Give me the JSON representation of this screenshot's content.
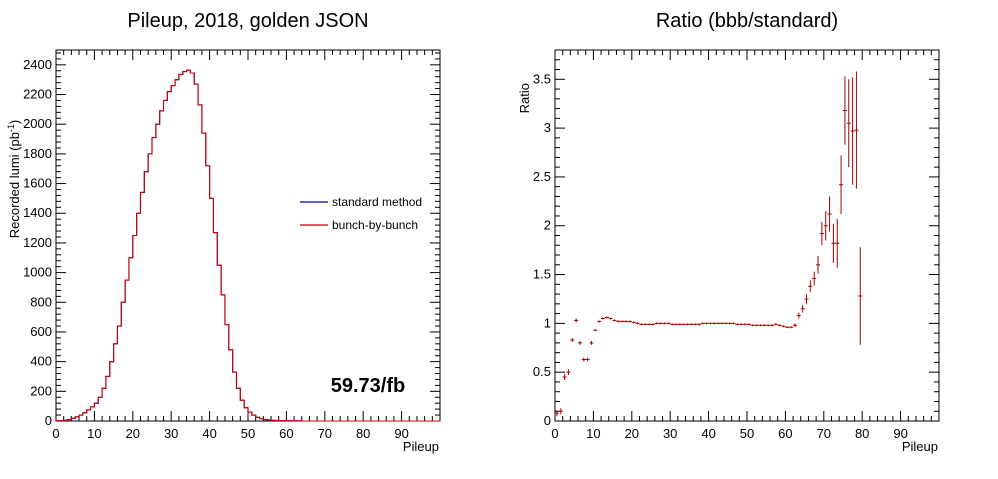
{
  "chart_data": [
    {
      "type": "line",
      "title": "Pileup, 2018, golden JSON",
      "xlabel": "Pileup",
      "ylabel": "Recorded lumi (pb",
      "ylabel_sup": "-1",
      "ylabel_close": ")",
      "xlim": [
        0,
        100
      ],
      "ylim": [
        0,
        2500
      ],
      "xticks": [
        0,
        10,
        20,
        30,
        40,
        50,
        60,
        70,
        80,
        90
      ],
      "yticks": [
        0,
        200,
        400,
        600,
        800,
        1000,
        1200,
        1400,
        1600,
        1800,
        2000,
        2200,
        2400
      ],
      "annotation": "59.73/fb",
      "legend_position": "right",
      "series": [
        {
          "name": "standard method",
          "color": "#000099",
          "values": [
            2,
            3,
            5,
            10,
            18,
            28,
            40,
            55,
            75,
            95,
            120,
            160,
            220,
            300,
            400,
            520,
            640,
            800,
            950,
            1100,
            1250,
            1400,
            1540,
            1680,
            1800,
            1910,
            2000,
            2090,
            2160,
            2220,
            2260,
            2300,
            2335,
            2355,
            2365,
            2345,
            2270,
            2130,
            1940,
            1720,
            1500,
            1270,
            1050,
            850,
            650,
            480,
            330,
            220,
            140,
            90,
            60,
            40,
            25,
            16,
            10,
            7,
            5,
            4,
            3,
            2,
            2,
            1,
            1,
            1,
            0,
            0,
            0,
            0,
            0,
            0,
            0,
            0,
            0,
            0,
            0,
            0,
            0,
            0,
            0,
            0,
            0,
            0,
            0,
            0,
            0,
            0,
            0,
            0,
            0,
            0,
            0,
            0,
            0,
            0,
            0,
            0,
            0,
            0,
            0,
            0
          ]
        },
        {
          "name": "bunch-by-bunch",
          "color": "#cc0000",
          "values": [
            2,
            3,
            5,
            10,
            18,
            28,
            40,
            55,
            75,
            95,
            120,
            160,
            220,
            300,
            400,
            520,
            640,
            800,
            950,
            1100,
            1250,
            1400,
            1540,
            1680,
            1800,
            1910,
            2000,
            2090,
            2160,
            2220,
            2260,
            2300,
            2335,
            2355,
            2365,
            2345,
            2270,
            2130,
            1940,
            1720,
            1500,
            1270,
            1050,
            850,
            650,
            480,
            330,
            220,
            140,
            90,
            60,
            40,
            25,
            16,
            10,
            7,
            5,
            4,
            3,
            2,
            2,
            1,
            1,
            1,
            0,
            0,
            0,
            0,
            0,
            0,
            0,
            0,
            0,
            0,
            0,
            0,
            0,
            0,
            0,
            0,
            0,
            0,
            0,
            0,
            0,
            0,
            0,
            0,
            0,
            0,
            0,
            0,
            0,
            0,
            0,
            0,
            0,
            0,
            0,
            0
          ]
        }
      ]
    },
    {
      "type": "scatter",
      "title": "Ratio (bbb/standard)",
      "xlabel": "Pileup",
      "ylabel": "Ratio",
      "xlim": [
        0,
        100
      ],
      "ylim": [
        0,
        3.8
      ],
      "xticks": [
        0,
        10,
        20,
        30,
        40,
        50,
        60,
        70,
        80,
        90
      ],
      "yticks": [
        0,
        0.5,
        1,
        1.5,
        2,
        2.5,
        3,
        3.5
      ],
      "ytick_labels": [
        "0",
        "0.5",
        "1",
        "1.5",
        "2",
        "2.5",
        "3",
        "3.5"
      ],
      "color": "#aa0000",
      "points": [
        {
          "x": 0.5,
          "y": 0.08,
          "err": 0.03
        },
        {
          "x": 1.5,
          "y": 0.1,
          "err": 0.03
        },
        {
          "x": 2.5,
          "y": 0.45,
          "err": 0.03
        },
        {
          "x": 3.5,
          "y": 0.5,
          "err": 0.03
        },
        {
          "x": 4.5,
          "y": 0.83,
          "err": 0.02
        },
        {
          "x": 5.5,
          "y": 1.03,
          "err": 0.02
        },
        {
          "x": 6.5,
          "y": 0.8,
          "err": 0.02
        },
        {
          "x": 7.5,
          "y": 0.63,
          "err": 0.02
        },
        {
          "x": 8.5,
          "y": 0.63,
          "err": 0.02
        },
        {
          "x": 9.5,
          "y": 0.8,
          "err": 0.02
        },
        {
          "x": 10.5,
          "y": 0.93,
          "err": 0.01
        },
        {
          "x": 11.5,
          "y": 1.02,
          "err": 0.01
        },
        {
          "x": 12.5,
          "y": 1.05,
          "err": 0.01
        },
        {
          "x": 13.5,
          "y": 1.06,
          "err": 0.01
        },
        {
          "x": 14.5,
          "y": 1.05,
          "err": 0.01
        },
        {
          "x": 15.5,
          "y": 1.03,
          "err": 0.01
        },
        {
          "x": 16.5,
          "y": 1.02,
          "err": 0.01
        },
        {
          "x": 17.5,
          "y": 1.02,
          "err": 0.01
        },
        {
          "x": 18.5,
          "y": 1.02,
          "err": 0.01
        },
        {
          "x": 19.5,
          "y": 1.02,
          "err": 0.01
        },
        {
          "x": 20.5,
          "y": 1.01,
          "err": 0.01
        },
        {
          "x": 21.5,
          "y": 1.0,
          "err": 0.01
        },
        {
          "x": 22.5,
          "y": 0.99,
          "err": 0.01
        },
        {
          "x": 23.5,
          "y": 0.99,
          "err": 0.01
        },
        {
          "x": 24.5,
          "y": 0.99,
          "err": 0.01
        },
        {
          "x": 25.5,
          "y": 0.99,
          "err": 0.01
        },
        {
          "x": 26.5,
          "y": 1.0,
          "err": 0.01
        },
        {
          "x": 27.5,
          "y": 1.0,
          "err": 0.01
        },
        {
          "x": 28.5,
          "y": 1.0,
          "err": 0.01
        },
        {
          "x": 29.5,
          "y": 1.0,
          "err": 0.01
        },
        {
          "x": 30.5,
          "y": 0.99,
          "err": 0.01
        },
        {
          "x": 31.5,
          "y": 0.99,
          "err": 0.01
        },
        {
          "x": 32.5,
          "y": 0.99,
          "err": 0.01
        },
        {
          "x": 33.5,
          "y": 0.99,
          "err": 0.01
        },
        {
          "x": 34.5,
          "y": 0.99,
          "err": 0.01
        },
        {
          "x": 35.5,
          "y": 0.99,
          "err": 0.01
        },
        {
          "x": 36.5,
          "y": 0.99,
          "err": 0.01
        },
        {
          "x": 37.5,
          "y": 0.99,
          "err": 0.01
        },
        {
          "x": 38.5,
          "y": 1.0,
          "err": 0.01
        },
        {
          "x": 39.5,
          "y": 1.0,
          "err": 0.01
        },
        {
          "x": 40.5,
          "y": 1.0,
          "err": 0.01
        },
        {
          "x": 41.5,
          "y": 1.0,
          "err": 0.01
        },
        {
          "x": 42.5,
          "y": 1.0,
          "err": 0.01
        },
        {
          "x": 43.5,
          "y": 1.0,
          "err": 0.01
        },
        {
          "x": 44.5,
          "y": 1.0,
          "err": 0.01
        },
        {
          "x": 45.5,
          "y": 1.0,
          "err": 0.01
        },
        {
          "x": 46.5,
          "y": 1.0,
          "err": 0.01
        },
        {
          "x": 47.5,
          "y": 0.99,
          "err": 0.01
        },
        {
          "x": 48.5,
          "y": 0.99,
          "err": 0.01
        },
        {
          "x": 49.5,
          "y": 0.99,
          "err": 0.01
        },
        {
          "x": 50.5,
          "y": 0.99,
          "err": 0.01
        },
        {
          "x": 51.5,
          "y": 0.98,
          "err": 0.01
        },
        {
          "x": 52.5,
          "y": 0.98,
          "err": 0.01
        },
        {
          "x": 53.5,
          "y": 0.98,
          "err": 0.01
        },
        {
          "x": 54.5,
          "y": 0.98,
          "err": 0.01
        },
        {
          "x": 55.5,
          "y": 0.98,
          "err": 0.01
        },
        {
          "x": 56.5,
          "y": 0.98,
          "err": 0.01
        },
        {
          "x": 57.5,
          "y": 0.99,
          "err": 0.01
        },
        {
          "x": 58.5,
          "y": 0.98,
          "err": 0.01
        },
        {
          "x": 59.5,
          "y": 0.97,
          "err": 0.01
        },
        {
          "x": 60.5,
          "y": 0.96,
          "err": 0.01
        },
        {
          "x": 61.5,
          "y": 0.96,
          "err": 0.01
        },
        {
          "x": 62.5,
          "y": 0.98,
          "err": 0.02
        },
        {
          "x": 63.5,
          "y": 1.08,
          "err": 0.03
        },
        {
          "x": 64.5,
          "y": 1.15,
          "err": 0.04
        },
        {
          "x": 65.5,
          "y": 1.25,
          "err": 0.05
        },
        {
          "x": 66.5,
          "y": 1.38,
          "err": 0.06
        },
        {
          "x": 67.5,
          "y": 1.46,
          "err": 0.07
        },
        {
          "x": 68.5,
          "y": 1.6,
          "err": 0.09
        },
        {
          "x": 69.5,
          "y": 1.92,
          "err": 0.12
        },
        {
          "x": 70.5,
          "y": 2.0,
          "err": 0.15
        },
        {
          "x": 71.5,
          "y": 2.12,
          "err": 0.18
        },
        {
          "x": 72.5,
          "y": 1.82,
          "err": 0.2
        },
        {
          "x": 73.5,
          "y": 1.82,
          "err": 0.25
        },
        {
          "x": 74.5,
          "y": 2.42,
          "err": 0.3
        },
        {
          "x": 75.5,
          "y": 3.18,
          "err": 0.35
        },
        {
          "x": 76.5,
          "y": 3.05,
          "err": 0.45
        },
        {
          "x": 77.5,
          "y": 2.97,
          "err": 0.55
        },
        {
          "x": 78.5,
          "y": 2.98,
          "err": 0.6
        },
        {
          "x": 79.5,
          "y": 1.28,
          "err": 0.5
        }
      ]
    }
  ]
}
